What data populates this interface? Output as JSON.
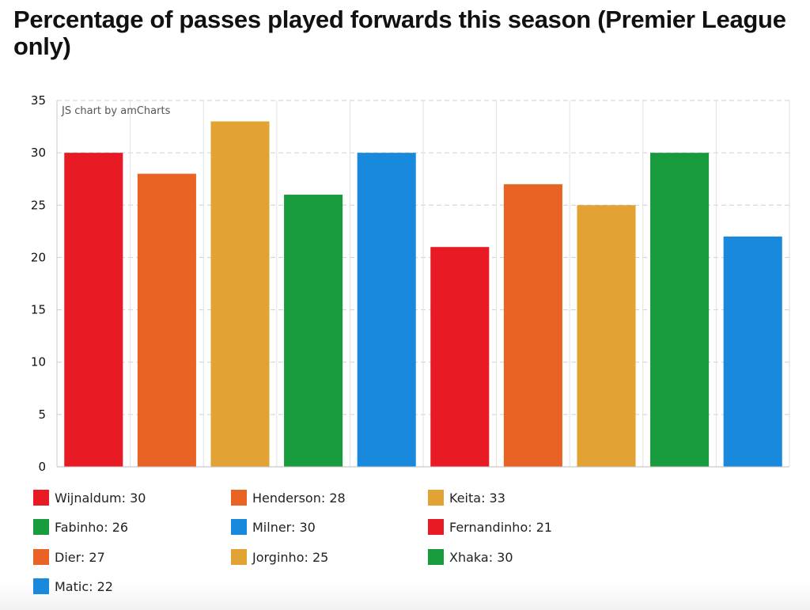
{
  "chart_data": {
    "type": "bar",
    "title": "Percentage of passes played forwards this season (Premier League only)",
    "xlabel": "",
    "ylabel": "",
    "ylim": [
      0,
      35
    ],
    "yticks": [
      0,
      5,
      10,
      15,
      20,
      25,
      30,
      35
    ],
    "grid": true,
    "legend_placement": "bottom",
    "credit": "JS chart by amCharts",
    "categories": [
      "Wijnaldum",
      "Henderson",
      "Keita",
      "Fabinho",
      "Milner",
      "Fernandinho",
      "Dier",
      "Jorginho",
      "Xhaka",
      "Matic"
    ],
    "values": [
      30,
      28,
      33,
      26,
      30,
      21,
      27,
      25,
      30,
      22
    ],
    "colors": [
      "#e81a23",
      "#e96424",
      "#e2a334",
      "#189b3c",
      "#1889dc",
      "#e81a23",
      "#e96424",
      "#e2a334",
      "#189b3c",
      "#1889dc"
    ],
    "legend": [
      "Wijnaldum: 30",
      "Henderson: 28",
      "Keita: 33",
      "Fabinho: 26",
      "Milner: 30",
      "Fernandinho: 21",
      "Dier: 27",
      "Jorginho: 25",
      "Xhaka: 30",
      "Matic: 22"
    ]
  }
}
